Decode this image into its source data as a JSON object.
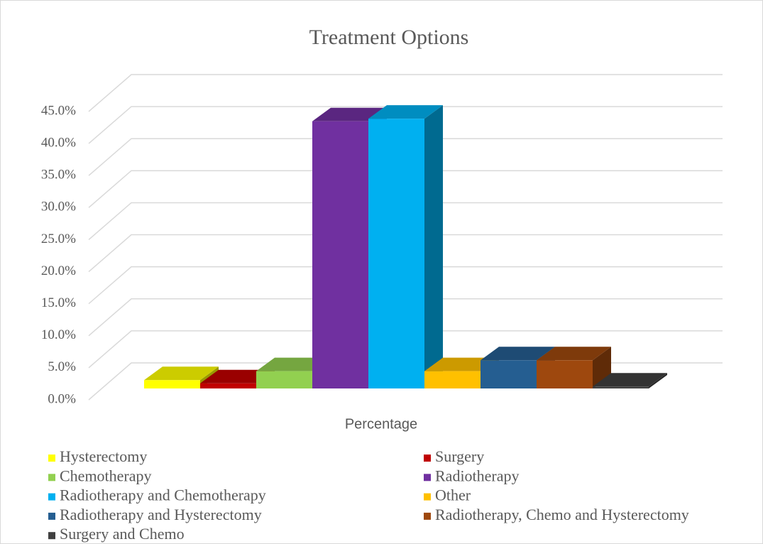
{
  "chart_data": {
    "type": "bar3d",
    "title": "Treatment Options",
    "categories": [
      "Percentage"
    ],
    "series": [
      {
        "name": "Hysterectomy",
        "color": "#ffff00",
        "values": [
          1.3
        ]
      },
      {
        "name": "Surgery",
        "color": "#c00000",
        "values": [
          0.8
        ]
      },
      {
        "name": "Chemotherapy",
        "color": "#92d050",
        "values": [
          2.7
        ]
      },
      {
        "name": "Radiotherapy",
        "color": "#7030a0",
        "values": [
          41.7
        ]
      },
      {
        "name": "Radiotherapy and Chemotherapy",
        "color": "#00b0f0",
        "values": [
          42.1
        ]
      },
      {
        "name": "Other",
        "color": "#ffc000",
        "values": [
          2.7
        ]
      },
      {
        "name": "Radiotherapy and Hysterectomy",
        "color": "#255e91",
        "values": [
          4.4
        ]
      },
      {
        "name": "Radiotherapy, Chemo and Hysterectomy",
        "color": "#9e480e",
        "values": [
          4.4
        ]
      },
      {
        "name": "Surgery and Chemo",
        "color": "#404040",
        "values": [
          0.3
        ]
      }
    ],
    "ylim": [
      0,
      45
    ],
    "yticks": [
      {
        "value": 0,
        "label": "0.0%"
      },
      {
        "value": 5,
        "label": "5.0%"
      },
      {
        "value": 10,
        "label": "10.0%"
      },
      {
        "value": 15,
        "label": "15.0%"
      },
      {
        "value": 20,
        "label": "20.0%"
      },
      {
        "value": 25,
        "label": "25.0%"
      },
      {
        "value": 30,
        "label": "30.0%"
      },
      {
        "value": 35,
        "label": "35.0%"
      },
      {
        "value": 40,
        "label": "40.0%"
      },
      {
        "value": 45,
        "label": "45.0%"
      }
    ],
    "grid": true,
    "legend": "bottom"
  }
}
